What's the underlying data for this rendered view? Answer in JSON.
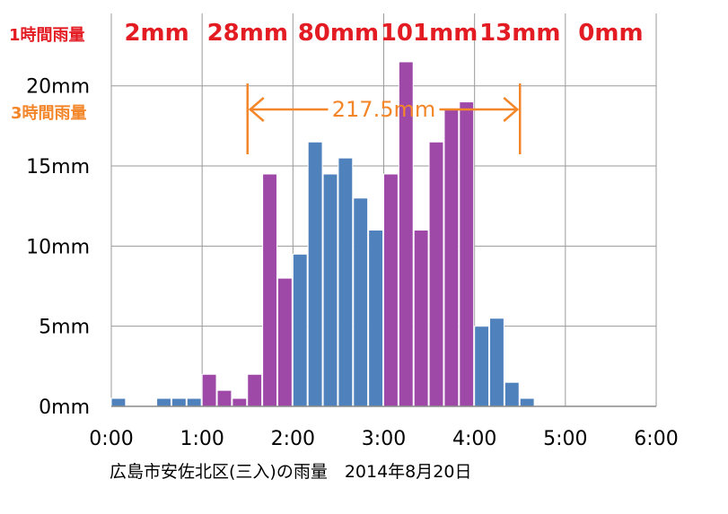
{
  "chart_data": {
    "type": "bar",
    "xlabel": "",
    "ylabel": "",
    "caption": "広島市安佐北区(三入)の雨量　2014年8月20日",
    "x_tick_labels": [
      "0:00",
      "1:00",
      "2:00",
      "3:00",
      "4:00",
      "5:00",
      "6:00"
    ],
    "y_tick_labels": [
      "0mm",
      "5mm",
      "10mm",
      "15mm",
      "20mm"
    ],
    "y_ticks": [
      0,
      5,
      10,
      15,
      20
    ],
    "ylim": [
      0,
      22
    ],
    "xlim_minutes": [
      0,
      360
    ],
    "bar_width_minutes": 10,
    "grid": true,
    "series": [
      {
        "color": "#4f81bd",
        "bars": [
          {
            "start": "0:00",
            "value": 0.5
          },
          {
            "start": "0:30",
            "value": 0.5
          },
          {
            "start": "0:40",
            "value": 0.5
          },
          {
            "start": "0:50",
            "value": 0.5
          },
          {
            "start": "2:00",
            "value": 9.5
          },
          {
            "start": "2:10",
            "value": 16.5
          },
          {
            "start": "2:20",
            "value": 14.5
          },
          {
            "start": "2:30",
            "value": 15.5
          },
          {
            "start": "2:40",
            "value": 13
          },
          {
            "start": "2:50",
            "value": 11
          },
          {
            "start": "4:00",
            "value": 5
          },
          {
            "start": "4:10",
            "value": 5.5
          },
          {
            "start": "4:20",
            "value": 1.5
          },
          {
            "start": "4:30",
            "value": 0.5
          }
        ]
      },
      {
        "color": "#9e48a8",
        "bars": [
          {
            "start": "1:00",
            "value": 2
          },
          {
            "start": "1:10",
            "value": 1
          },
          {
            "start": "1:20",
            "value": 0.5
          },
          {
            "start": "1:30",
            "value": 2
          },
          {
            "start": "1:40",
            "value": 14.5
          },
          {
            "start": "1:50",
            "value": 8
          },
          {
            "start": "3:00",
            "value": 14.5
          },
          {
            "start": "3:10",
            "value": 21.5
          },
          {
            "start": "3:20",
            "value": 11
          },
          {
            "start": "3:30",
            "value": 16.5
          },
          {
            "start": "3:40",
            "value": 18.5
          },
          {
            "start": "3:50",
            "value": 19
          }
        ]
      }
    ],
    "hourly_label": "1時間雨量",
    "hourly_label_color": "#e31c23",
    "hourly_totals": [
      {
        "hour_start": "0:00",
        "text": "2mm"
      },
      {
        "hour_start": "1:00",
        "text": "28mm"
      },
      {
        "hour_start": "2:00",
        "text": "80mm"
      },
      {
        "hour_start": "3:00",
        "text": "101mm"
      },
      {
        "hour_start": "4:00",
        "text": "13mm"
      },
      {
        "hour_start": "5:00",
        "text": "0mm"
      }
    ],
    "three_hour_label": "3時間雨量",
    "three_hour_color": "#f4862a",
    "three_hour_range": {
      "from": "1:30",
      "to": "4:30",
      "text": "217.5mm"
    }
  }
}
